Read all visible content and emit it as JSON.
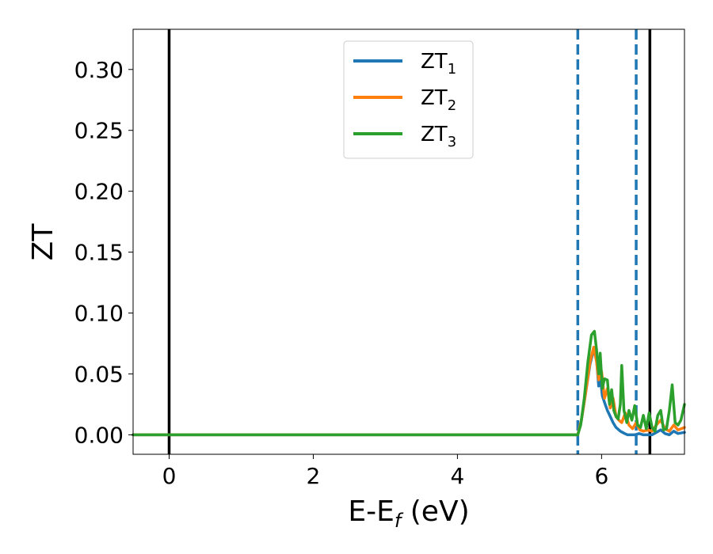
{
  "chart_data": {
    "type": "line",
    "xlabel": "E-E",
    "xlabel_sub": "f",
    "xlabel_unit": " (eV)",
    "ylabel": "ZT",
    "xlim": [
      -0.5,
      7.15
    ],
    "ylim": [
      -0.016,
      0.333
    ],
    "xticks": [
      0,
      2,
      4,
      6
    ],
    "xtick_labels": [
      "0",
      "2",
      "4",
      "6"
    ],
    "yticks": [
      0.0,
      0.05,
      0.1,
      0.15,
      0.2,
      0.25,
      0.3
    ],
    "ytick_labels": [
      "0.00",
      "0.05",
      "0.10",
      "0.15",
      "0.20",
      "0.25",
      "0.30"
    ],
    "grid": false,
    "legend_position": "top-center",
    "vlines": [
      {
        "x": 0.0,
        "style": "solid",
        "color": "#000000"
      },
      {
        "x": 5.67,
        "style": "dashed",
        "color": "#1f77b4"
      },
      {
        "x": 6.48,
        "style": "dashed",
        "color": "#1f77b4"
      },
      {
        "x": 6.67,
        "style": "solid",
        "color": "#000000"
      }
    ],
    "series": [
      {
        "name": "ZT",
        "name_sub": "1",
        "color": "#1f77b4",
        "x": [
          -0.5,
          5.67,
          5.72,
          5.78,
          5.84,
          5.89,
          5.93,
          5.96,
          5.98,
          6.01,
          6.05,
          6.08,
          6.12,
          6.16,
          6.2,
          6.26,
          6.32,
          6.36,
          6.4,
          6.46,
          6.52,
          6.58,
          6.64,
          6.7,
          6.76,
          6.82,
          6.88,
          6.94,
          7.0,
          7.06,
          7.15
        ],
        "y": [
          0.0,
          0.0,
          0.012,
          0.035,
          0.058,
          0.07,
          0.062,
          0.04,
          0.048,
          0.032,
          0.025,
          0.02,
          0.015,
          0.01,
          0.006,
          0.003,
          0.001,
          0.0,
          0.0,
          0.0,
          0.001,
          0.0,
          0.0,
          0.0,
          0.002,
          0.004,
          0.001,
          0.0,
          0.003,
          0.001,
          0.002
        ]
      },
      {
        "name": "ZT",
        "name_sub": "2",
        "color": "#ff7f0e",
        "x": [
          -0.5,
          5.67,
          5.72,
          5.78,
          5.84,
          5.89,
          5.93,
          5.96,
          6.0,
          6.04,
          6.08,
          6.12,
          6.16,
          6.2,
          6.24,
          6.28,
          6.33,
          6.38,
          6.43,
          6.48,
          6.53,
          6.58,
          6.64,
          6.7,
          6.76,
          6.82,
          6.88,
          6.94,
          7.0,
          7.06,
          7.15
        ],
        "y": [
          0.0,
          0.0,
          0.012,
          0.035,
          0.06,
          0.072,
          0.06,
          0.045,
          0.052,
          0.03,
          0.038,
          0.022,
          0.03,
          0.015,
          0.012,
          0.01,
          0.018,
          0.008,
          0.005,
          0.01,
          0.004,
          0.003,
          0.004,
          0.003,
          0.008,
          0.012,
          0.005,
          0.003,
          0.008,
          0.004,
          0.006
        ]
      },
      {
        "name": "ZT",
        "name_sub": "3",
        "color": "#2ca02c",
        "x": [
          -0.5,
          5.67,
          5.71,
          5.76,
          5.81,
          5.86,
          5.9,
          5.93,
          5.96,
          5.98,
          6.01,
          6.04,
          6.08,
          6.11,
          6.14,
          6.17,
          6.2,
          6.23,
          6.26,
          6.28,
          6.31,
          6.35,
          6.38,
          6.42,
          6.46,
          6.5,
          6.54,
          6.58,
          6.62,
          6.66,
          6.7,
          6.74,
          6.78,
          6.82,
          6.86,
          6.9,
          6.94,
          6.98,
          7.02,
          7.06,
          7.1,
          7.15
        ],
        "y": [
          0.0,
          0.0,
          0.008,
          0.03,
          0.06,
          0.082,
          0.085,
          0.07,
          0.05,
          0.067,
          0.038,
          0.046,
          0.045,
          0.025,
          0.037,
          0.02,
          0.015,
          0.013,
          0.025,
          0.057,
          0.02,
          0.01,
          0.02,
          0.012,
          0.024,
          0.008,
          0.006,
          0.016,
          0.005,
          0.018,
          0.006,
          0.003,
          0.016,
          0.02,
          0.004,
          0.005,
          0.02,
          0.041,
          0.01,
          0.008,
          0.012,
          0.025
        ]
      }
    ]
  }
}
